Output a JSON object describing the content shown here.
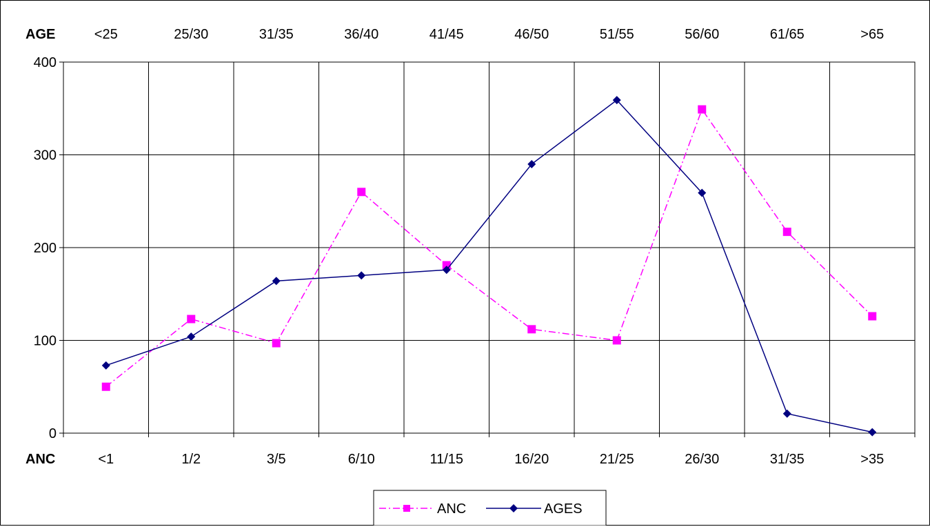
{
  "chart_data": {
    "type": "line",
    "top_axis": {
      "label": "AGE",
      "categories": [
        "<25",
        "25/30",
        "31/35",
        "36/40",
        "41/45",
        "46/50",
        "51/55",
        "56/60",
        "61/65",
        ">65"
      ]
    },
    "bottom_axis": {
      "label": "ANC",
      "categories": [
        "<1",
        "1/2",
        "3/5",
        "6/10",
        "11/15",
        "16/20",
        "21/25",
        "26/30",
        "31/35",
        ">35"
      ]
    },
    "yticks": [
      "0",
      "100",
      "200",
      "300",
      "400"
    ],
    "ylim": [
      0,
      400
    ],
    "grid": true,
    "legend_position": "bottom",
    "series": [
      {
        "name": "ANC",
        "values": [
          50,
          123,
          97,
          260,
          181,
          112,
          100,
          349,
          217,
          126
        ],
        "color": "#ff00ff",
        "marker": "square",
        "line_style": "dash-dot"
      },
      {
        "name": "AGES",
        "values": [
          73,
          104,
          164,
          170,
          176,
          290,
          359,
          259,
          21,
          1
        ],
        "color": "#000080",
        "marker": "diamond",
        "line_style": "solid"
      }
    ]
  }
}
